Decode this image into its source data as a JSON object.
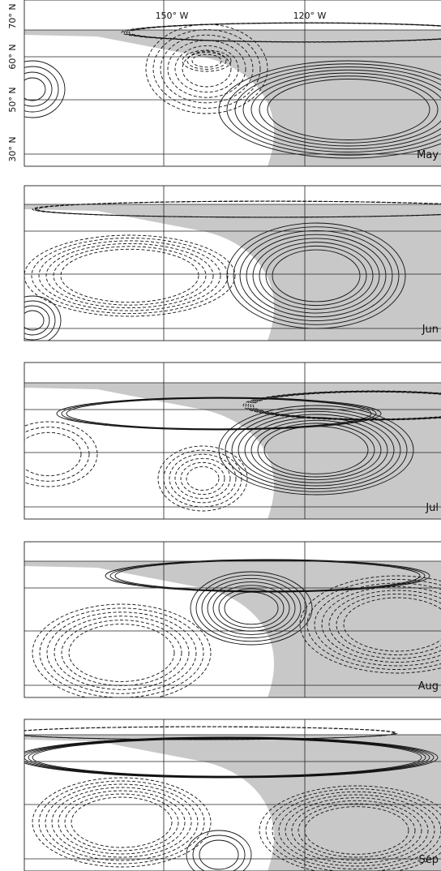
{
  "axis_labels": {
    "longitude": [
      "150° W",
      "120° W"
    ],
    "latitude": [
      "70° N",
      "60° N",
      "50° N",
      "30° N"
    ]
  },
  "panels": [
    {
      "label": "May"
    },
    {
      "label": "Jun"
    },
    {
      "label": "Jul"
    },
    {
      "label": "Aug"
    },
    {
      "label": "Sep"
    }
  ]
}
